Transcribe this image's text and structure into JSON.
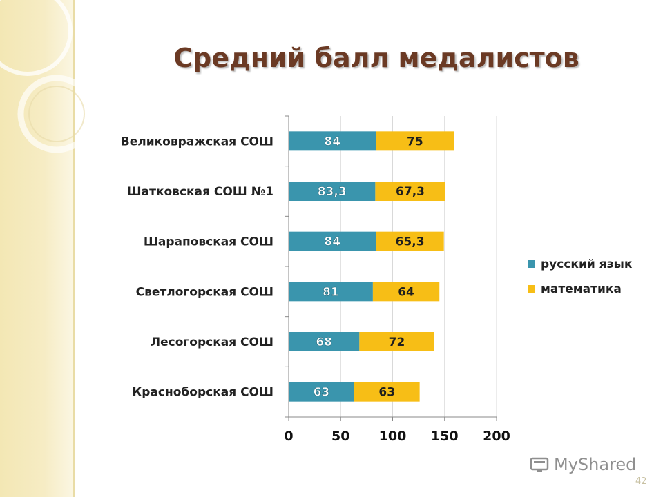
{
  "slide": {
    "title": "Средний балл медалистов",
    "page_number": "42",
    "watermark": "MyShared"
  },
  "colors": {
    "series_russian": "#3a95ad",
    "series_math": "#f7be16",
    "title": "#6b3a24",
    "grid": "#d9d9d9"
  },
  "chart_data": {
    "type": "bar",
    "orientation": "horizontal",
    "stacked": true,
    "title": "Средний балл медалистов",
    "categories": [
      "Великовражская СОШ",
      "Шатковская СОШ №1",
      "Шараповская СОШ",
      "Светлогорская СОШ",
      "Лесогорская СОШ",
      "Красноборская СОШ"
    ],
    "series": [
      {
        "name": "русский язык",
        "values": [
          84,
          83.3,
          84,
          81,
          68,
          63
        ],
        "labels": [
          "84",
          "83,3",
          "84",
          "81",
          "68",
          "63"
        ]
      },
      {
        "name": "математика",
        "values": [
          75,
          67.3,
          65.3,
          64,
          72,
          63
        ],
        "labels": [
          "75",
          "67,3",
          "65,3",
          "64",
          "72",
          "63"
        ]
      }
    ],
    "xlim": [
      0,
      200
    ],
    "ticks": [
      "0",
      "50",
      "100",
      "150",
      "200"
    ],
    "tick_values": [
      0,
      50,
      100,
      150,
      200
    ],
    "grid": true,
    "legend": "right",
    "xlabel": "",
    "ylabel": ""
  }
}
